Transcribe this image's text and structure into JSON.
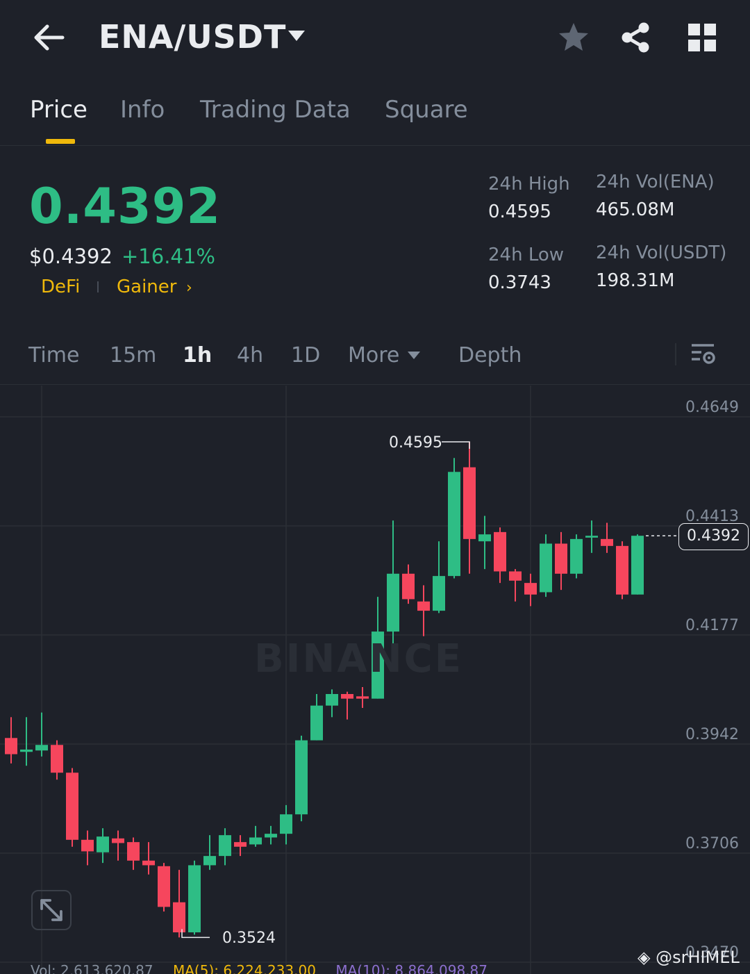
{
  "header": {
    "pair": "ENA/USDT"
  },
  "tabs": [
    "Price",
    "Info",
    "Trading Data",
    "Square"
  ],
  "ticker": {
    "last_price": "0.4392",
    "usd_price": "$0.4392",
    "change": "+16.41%",
    "tags": [
      "DeFi",
      "Gainer"
    ],
    "high_label": "24h High",
    "high_value": "0.4595",
    "low_label": "24h Low",
    "low_value": "0.3743",
    "vol_base_label": "24h Vol(ENA)",
    "vol_base_value": "465.08M",
    "vol_quote_label": "24h Vol(USDT)",
    "vol_quote_value": "198.31M"
  },
  "intervals": {
    "items": [
      "Time",
      "15m",
      "1h",
      "4h",
      "1D",
      "More",
      "Depth"
    ],
    "active": "1h"
  },
  "chart": {
    "axis_labels": [
      "0.4649",
      "0.4413",
      "0.4177",
      "0.3942",
      "0.3706",
      "0.3470"
    ],
    "current_price": "0.4392",
    "high_marker": "0.4595",
    "low_marker": "0.3524",
    "watermark": "BINANCE",
    "vol_line": {
      "vol": "Vol: 2,613,620.87",
      "ma5": "MA(5): 6,224,233.00",
      "ma10": "MA(10): 8,864,098.87"
    }
  },
  "credit": "@srHIMEL",
  "colors": {
    "bg": "#1e2129",
    "up": "#2ebd85",
    "down": "#f6465d",
    "accent": "#f0b90b",
    "muted": "#848e9c"
  },
  "chart_data": {
    "type": "candlestick",
    "interval": "1h",
    "series": [
      {
        "o": 0.3955,
        "h": 0.4,
        "l": 0.39,
        "c": 0.392
      },
      {
        "o": 0.3925,
        "h": 0.4,
        "l": 0.3895,
        "c": 0.393
      },
      {
        "o": 0.3928,
        "h": 0.401,
        "l": 0.3915,
        "c": 0.394
      },
      {
        "o": 0.394,
        "h": 0.395,
        "l": 0.3865,
        "c": 0.388
      },
      {
        "o": 0.388,
        "h": 0.389,
        "l": 0.372,
        "c": 0.3735
      },
      {
        "o": 0.3735,
        "h": 0.3755,
        "l": 0.368,
        "c": 0.371
      },
      {
        "o": 0.3708,
        "h": 0.376,
        "l": 0.3685,
        "c": 0.3742
      },
      {
        "o": 0.3738,
        "h": 0.3755,
        "l": 0.369,
        "c": 0.3728
      },
      {
        "o": 0.373,
        "h": 0.374,
        "l": 0.367,
        "c": 0.369
      },
      {
        "o": 0.369,
        "h": 0.373,
        "l": 0.366,
        "c": 0.368
      },
      {
        "o": 0.3678,
        "h": 0.3685,
        "l": 0.358,
        "c": 0.359
      },
      {
        "o": 0.36,
        "h": 0.367,
        "l": 0.3524,
        "c": 0.3535
      },
      {
        "o": 0.3535,
        "h": 0.369,
        "l": 0.353,
        "c": 0.368
      },
      {
        "o": 0.368,
        "h": 0.3745,
        "l": 0.367,
        "c": 0.37
      },
      {
        "o": 0.37,
        "h": 0.376,
        "l": 0.368,
        "c": 0.3745
      },
      {
        "o": 0.373,
        "h": 0.3745,
        "l": 0.37,
        "c": 0.372
      },
      {
        "o": 0.3725,
        "h": 0.3765,
        "l": 0.372,
        "c": 0.374
      },
      {
        "o": 0.374,
        "h": 0.3765,
        "l": 0.3725,
        "c": 0.3748
      },
      {
        "o": 0.3748,
        "h": 0.381,
        "l": 0.3725,
        "c": 0.379
      },
      {
        "o": 0.379,
        "h": 0.396,
        "l": 0.3775,
        "c": 0.395
      },
      {
        "o": 0.395,
        "h": 0.405,
        "l": 0.395,
        "c": 0.4025
      },
      {
        "o": 0.4025,
        "h": 0.406,
        "l": 0.4,
        "c": 0.405
      },
      {
        "o": 0.405,
        "h": 0.4055,
        "l": 0.3995,
        "c": 0.404
      },
      {
        "o": 0.4045,
        "h": 0.4065,
        "l": 0.402,
        "c": 0.404
      },
      {
        "o": 0.404,
        "h": 0.426,
        "l": 0.404,
        "c": 0.4185
      },
      {
        "o": 0.4185,
        "h": 0.4425,
        "l": 0.415,
        "c": 0.431
      },
      {
        "o": 0.431,
        "h": 0.433,
        "l": 0.4245,
        "c": 0.4255
      },
      {
        "o": 0.425,
        "h": 0.4285,
        "l": 0.4175,
        "c": 0.423
      },
      {
        "o": 0.423,
        "h": 0.438,
        "l": 0.4225,
        "c": 0.4305
      },
      {
        "o": 0.4305,
        "h": 0.456,
        "l": 0.43,
        "c": 0.453
      },
      {
        "o": 0.454,
        "h": 0.4595,
        "l": 0.431,
        "c": 0.4385
      },
      {
        "o": 0.438,
        "h": 0.4435,
        "l": 0.432,
        "c": 0.4395
      },
      {
        "o": 0.44,
        "h": 0.441,
        "l": 0.429,
        "c": 0.4315
      },
      {
        "o": 0.4315,
        "h": 0.432,
        "l": 0.425,
        "c": 0.4295
      },
      {
        "o": 0.429,
        "h": 0.431,
        "l": 0.424,
        "c": 0.4265
      },
      {
        "o": 0.427,
        "h": 0.4395,
        "l": 0.426,
        "c": 0.4375
      },
      {
        "o": 0.4375,
        "h": 0.44,
        "l": 0.4275,
        "c": 0.431
      },
      {
        "o": 0.431,
        "h": 0.4395,
        "l": 0.43,
        "c": 0.4385
      },
      {
        "o": 0.4388,
        "h": 0.4425,
        "l": 0.4355,
        "c": 0.4392
      },
      {
        "o": 0.4385,
        "h": 0.442,
        "l": 0.4355,
        "c": 0.437
      },
      {
        "o": 0.437,
        "h": 0.438,
        "l": 0.4255,
        "c": 0.4265
      },
      {
        "o": 0.4265,
        "h": 0.4395,
        "l": 0.4265,
        "c": 0.4392
      }
    ]
  }
}
